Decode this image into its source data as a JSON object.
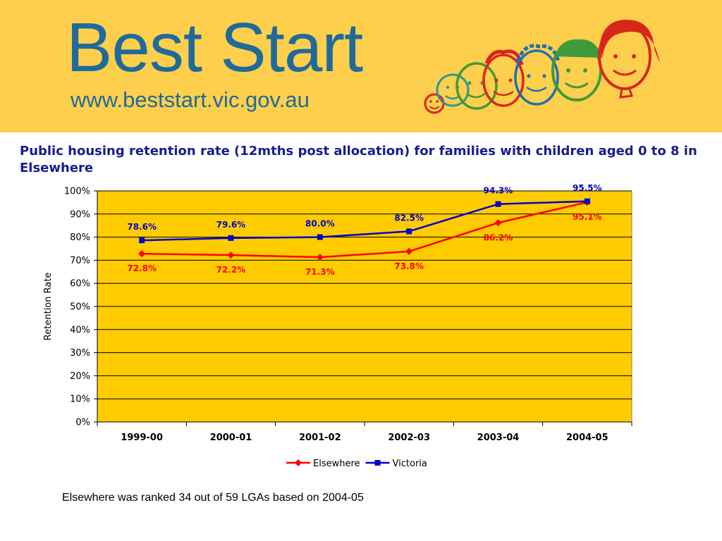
{
  "header": {
    "brand_name": "Best Start",
    "url": "www.beststart.vic.gov.au",
    "logo_icon": "children-faces-illustration",
    "colors": {
      "banner": "#fecf4c",
      "brand_text": "#1f6a9a"
    }
  },
  "footnote": "Elsewhere was ranked 34 out of 59 LGAs based on 2004-05",
  "chart_data": {
    "type": "line",
    "title": "Public housing retention rate (12mths post allocation) for families with children aged 0 to 8 in Elsewhere",
    "xlabel": "",
    "ylabel": "Retention Rate",
    "categories": [
      "1999-00",
      "2000-01",
      "2001-02",
      "2002-03",
      "2003-04",
      "2004-05"
    ],
    "ylim": [
      0,
      100
    ],
    "yticks": [
      "0%",
      "10%",
      "20%",
      "30%",
      "40%",
      "50%",
      "60%",
      "70%",
      "80%",
      "90%",
      "100%"
    ],
    "grid": true,
    "legend": "bottom",
    "plot_background": "#ffcc00",
    "series": [
      {
        "name": "Elsewhere",
        "values": [
          72.8,
          72.2,
          71.3,
          73.8,
          86.2,
          95.1
        ],
        "labels": [
          "72.8%",
          "72.2%",
          "71.3%",
          "73.8%",
          "86.2%",
          "95.1%"
        ],
        "color": "#ff0000",
        "marker": "diamond"
      },
      {
        "name": "Victoria",
        "values": [
          78.6,
          79.6,
          80.0,
          82.5,
          94.3,
          95.5
        ],
        "labels": [
          "78.6%",
          "79.6%",
          "80.0%",
          "82.5%",
          "94.3%",
          "95.5%"
        ],
        "color": "#0000cc",
        "marker": "square"
      }
    ]
  }
}
